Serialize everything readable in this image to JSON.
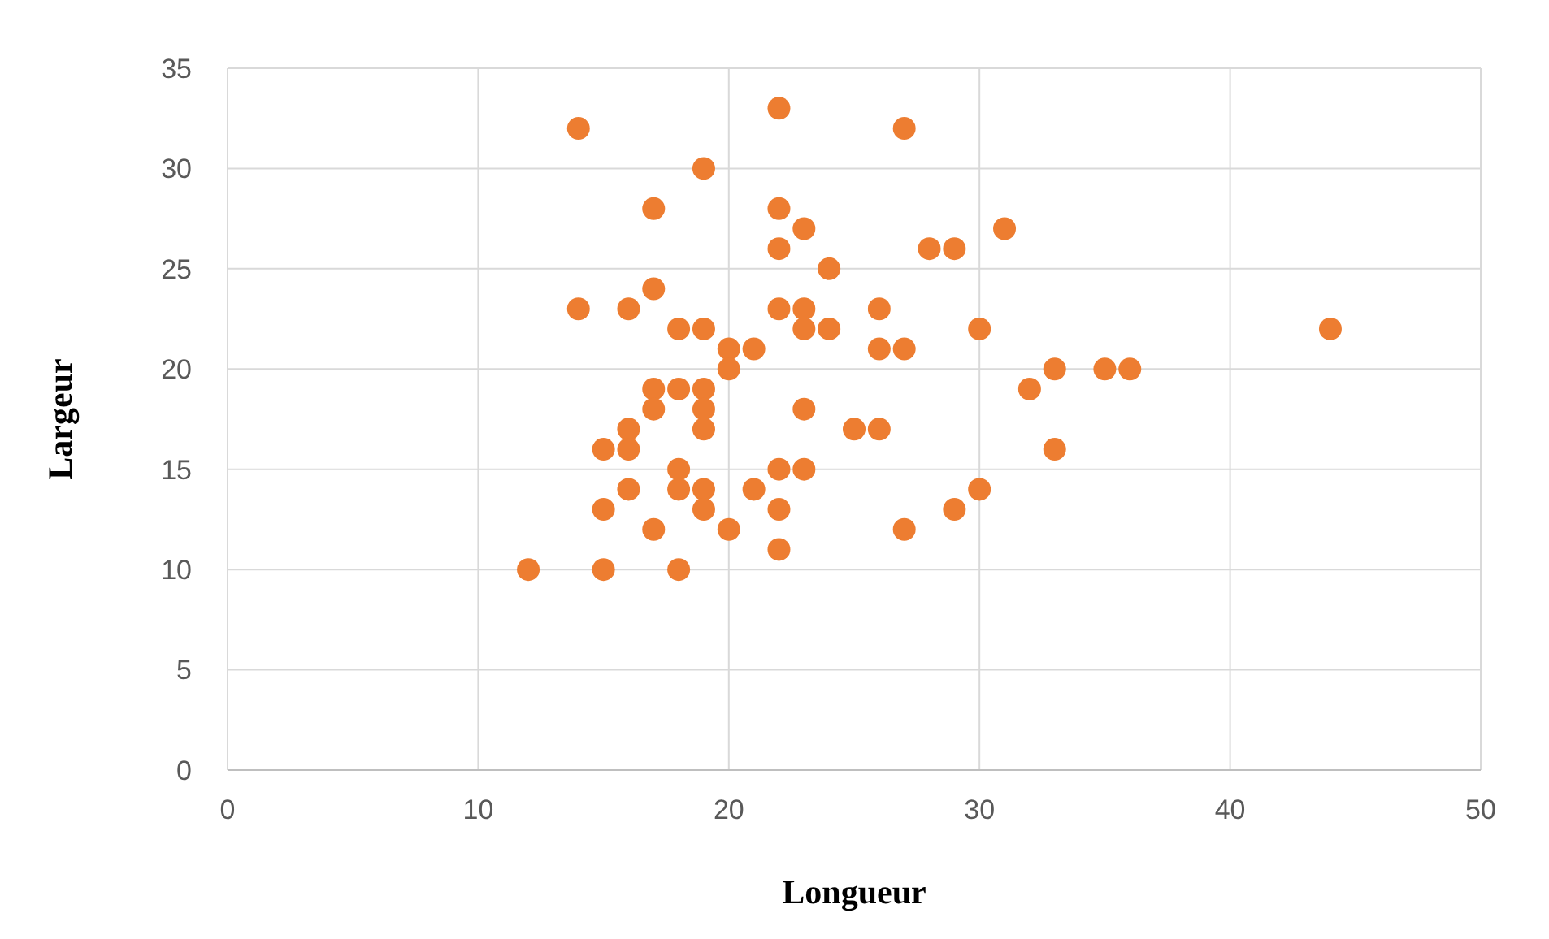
{
  "chart_data": {
    "type": "scatter",
    "xlabel": "Longueur",
    "ylabel": "Largeur",
    "xlim": [
      0,
      50
    ],
    "xticks": [
      0,
      10,
      20,
      30,
      40,
      50
    ],
    "ylim": [
      0,
      35
    ],
    "yticks": [
      0,
      5,
      10,
      15,
      20,
      25,
      30,
      35
    ],
    "grid": true,
    "marker": "circle",
    "series": [
      {
        "color": "#ed7d31",
        "x": [
          12,
          14,
          14,
          15,
          15,
          15,
          16,
          16,
          16,
          16,
          17,
          17,
          17,
          17,
          17,
          18,
          18,
          18,
          18,
          18,
          19,
          19,
          19,
          19,
          19,
          19,
          19,
          20,
          20,
          20,
          21,
          21,
          22,
          22,
          22,
          22,
          22,
          22,
          22,
          23,
          23,
          23,
          23,
          23,
          24,
          24,
          25,
          26,
          26,
          26,
          27,
          27,
          27,
          28,
          29,
          29,
          30,
          30,
          31,
          32,
          33,
          33,
          35,
          36,
          44
        ],
        "values": [
          10,
          32,
          23,
          16,
          13,
          10,
          23,
          17,
          16,
          14,
          28,
          24,
          19,
          18,
          12,
          22,
          19,
          15,
          14,
          10,
          30,
          22,
          19,
          18,
          17,
          14,
          13,
          21,
          20,
          12,
          21,
          14,
          33,
          28,
          26,
          23,
          15,
          13,
          11,
          27,
          23,
          22,
          18,
          15,
          25,
          22,
          17,
          23,
          21,
          17,
          32,
          21,
          12,
          26,
          26,
          13,
          22,
          14,
          27,
          19,
          20,
          16,
          20,
          20,
          22
        ]
      }
    ]
  }
}
